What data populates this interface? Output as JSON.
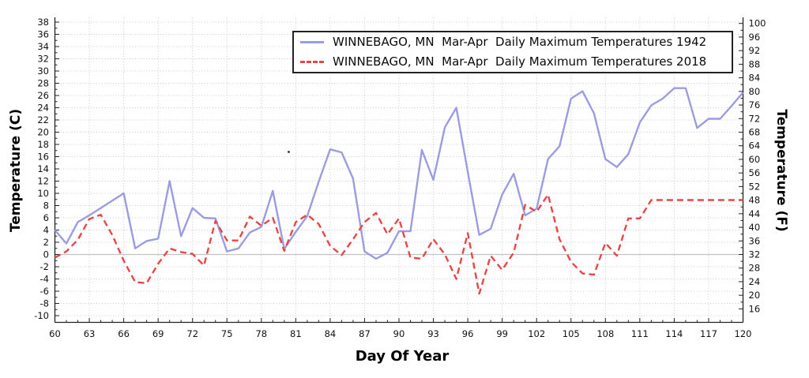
{
  "chart_data": {
    "type": "line",
    "title": "",
    "xlabel": "Day Of Year",
    "ylabel_left": "Temperature (C)",
    "ylabel_right": "Temperature (F)",
    "xlim": [
      60,
      120
    ],
    "ylim_c": [
      -11.2,
      38.8
    ],
    "grid": "dotted",
    "zero_line": true,
    "legend_position": "top",
    "x_ticks": [
      60,
      63,
      66,
      69,
      72,
      75,
      78,
      81,
      84,
      87,
      90,
      93,
      96,
      99,
      102,
      105,
      108,
      111,
      114,
      117,
      120
    ],
    "x_minor_tick_step": 1,
    "y_left_ticks": [
      38,
      36,
      34,
      32,
      30,
      28,
      26,
      24,
      22,
      20,
      18,
      16,
      14,
      12,
      10,
      8,
      6,
      4,
      2,
      0,
      -2,
      -4,
      -6,
      -8,
      -10
    ],
    "y_left_minor_tick_step": 1,
    "y_right_ticks": [
      100,
      96,
      92,
      88,
      84,
      80,
      76,
      72,
      68,
      64,
      60,
      56,
      52,
      48,
      44,
      40,
      36,
      32,
      28,
      24,
      20,
      16
    ],
    "y_right_minor_tick_step": 2,
    "x": [
      60,
      61,
      62,
      63,
      64,
      65,
      66,
      67,
      68,
      69,
      70,
      71,
      72,
      73,
      74,
      75,
      76,
      77,
      78,
      79,
      80,
      81,
      82,
      83,
      84,
      85,
      86,
      87,
      88,
      89,
      90,
      91,
      92,
      93,
      94,
      95,
      96,
      97,
      98,
      99,
      100,
      101,
      102,
      103,
      104,
      105,
      106,
      107,
      108,
      109,
      110,
      111,
      112,
      113,
      114,
      115,
      116,
      117,
      118,
      119,
      120
    ],
    "series": [
      {
        "name": "WINNEBAGO, MN  Mar-Apr  Daily Maximum Temperatures 1942",
        "color": "#9c9ce2",
        "style": "solid",
        "values": [
          4.0,
          1.8,
          5.3,
          6.4,
          7.6,
          8.8,
          10.0,
          1.0,
          2.2,
          2.6,
          12.0,
          3.0,
          7.6,
          6.0,
          5.9,
          0.5,
          1.0,
          3.6,
          4.5,
          10.4,
          0.9,
          3.7,
          6.3,
          11.9,
          17.2,
          16.7,
          12.4,
          0.5,
          -0.7,
          0.3,
          3.8,
          3.8,
          17.1,
          12.2,
          20.8,
          24.0,
          13.5,
          3.2,
          4.2,
          9.8,
          13.2,
          6.4,
          7.5,
          15.6,
          17.7,
          25.5,
          26.7,
          23.1,
          15.6,
          14.3,
          16.4,
          21.6,
          24.4,
          25.5,
          27.2,
          27.2,
          20.7,
          22.2,
          22.2,
          24.3,
          26.5
        ]
      },
      {
        "name": "WINNEBAGO, MN  Mar-Apr  Daily Maximum Temperatures 2018",
        "color": "#e84747",
        "style": "dashed",
        "values": [
          -0.5,
          0.5,
          2.4,
          5.8,
          6.5,
          3.2,
          -1.0,
          -4.5,
          -4.7,
          -1.5,
          1.0,
          0.4,
          0.1,
          -1.8,
          5.5,
          2.3,
          2.3,
          6.2,
          4.7,
          6.0,
          0.6,
          5.3,
          6.5,
          5.0,
          1.4,
          -0.1,
          2.5,
          5.3,
          6.8,
          3.3,
          5.9,
          -0.5,
          -0.7,
          2.5,
          0.0,
          -4.0,
          3.5,
          -6.4,
          -0.2,
          -2.5,
          0.3,
          8.1,
          7.0,
          9.8,
          2.5,
          -1.2,
          -3.1,
          -3.3,
          1.9,
          -0.2,
          5.9,
          5.9,
          8.9,
          8.9,
          8.9,
          8.9,
          8.9,
          8.9,
          8.9,
          8.9,
          8.9
        ]
      }
    ]
  },
  "colors": {
    "axis": "#222222",
    "tick_text": "#111111",
    "grid": "#c9c9c9",
    "zero_line": "#c2c2c2",
    "legend_border": "#222222",
    "background": "#ffffff"
  }
}
